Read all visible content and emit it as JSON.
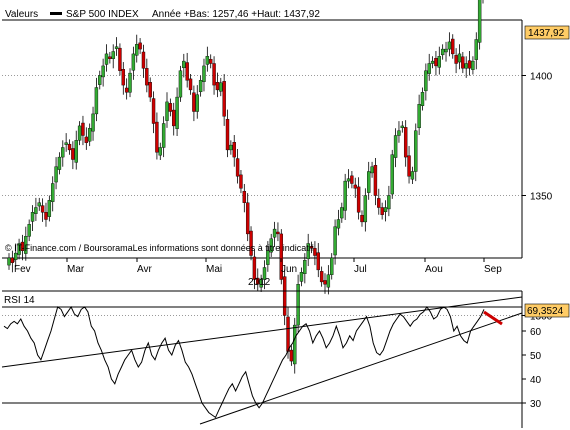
{
  "header": {
    "values_label": "Valeurs",
    "series_name": "S&P 500 INDEX",
    "range_text": "Année +Bas: 1257,46 +Haut: 1437,92"
  },
  "price_axis": {
    "ticks": [
      "1400",
      "1350",
      "1300"
    ],
    "last_value": "1437,92",
    "last_value_color": "#ffcc66"
  },
  "watermark": "© IT-Finance.com / BoursoramaLes informations sont données à titre indicatif",
  "time_axis": {
    "months": [
      "Fev",
      "Mar",
      "Avr",
      "Mai",
      "Jun",
      "Jul",
      "Aou",
      "Sep"
    ],
    "year": "2012"
  },
  "rsi": {
    "label": "RSI 14",
    "ticks": [
      "60",
      "50",
      "40",
      "30"
    ],
    "last_value": "69,3524",
    "last_value_color": "#ffcc66",
    "levels": [
      70,
      30
    ],
    "values": [
      62,
      61,
      63,
      64,
      63,
      65,
      62,
      60,
      57,
      55,
      50,
      48,
      52,
      56,
      60,
      65,
      70,
      69,
      66,
      68,
      70,
      67,
      66,
      69,
      70,
      68,
      62,
      60,
      55,
      52,
      48,
      45,
      40,
      38,
      42,
      45,
      48,
      50,
      52,
      48,
      45,
      47,
      52,
      55,
      50,
      48,
      52,
      55,
      57,
      52,
      50,
      54,
      56,
      52,
      47,
      45,
      42,
      38,
      34,
      30,
      28,
      26,
      25,
      24,
      27,
      30,
      33,
      36,
      38,
      35,
      38,
      41,
      43,
      38,
      33,
      30,
      28,
      30,
      33,
      36,
      39,
      42,
      45,
      48,
      50,
      53,
      55,
      58,
      60,
      62,
      63,
      60,
      55,
      58,
      60,
      57,
      53,
      55,
      58,
      62,
      58,
      53,
      55,
      58,
      56,
      60,
      62,
      64,
      66,
      62,
      55,
      51,
      50,
      52,
      56,
      60,
      63,
      65,
      67,
      66,
      64,
      62,
      64,
      65,
      67,
      68,
      70,
      68,
      65,
      66,
      69,
      70,
      69,
      66,
      60,
      62,
      58,
      56,
      55,
      60,
      62,
      64,
      66,
      69
    ],
    "trendline_color": "#000000",
    "highlight_color": "#cc0000"
  },
  "chart_data": [
    {
      "type": "candlestick",
      "title": "S&P 500 INDEX",
      "year": "2012",
      "x_labels": [
        "Fev",
        "Mar",
        "Avr",
        "Mai",
        "Jun",
        "Jul",
        "Aou",
        "Sep"
      ],
      "ylim": [
        1257.46,
        1437.92
      ],
      "up_color": "#33aa33",
      "down_color": "#cc0000",
      "close": [
        1324,
        1322,
        1326,
        1330,
        1327,
        1333,
        1338,
        1343,
        1345,
        1347,
        1343,
        1340,
        1348,
        1355,
        1362,
        1366,
        1370,
        1372,
        1369,
        1365,
        1373,
        1379,
        1375,
        1372,
        1378,
        1384,
        1395,
        1400,
        1404,
        1409,
        1407,
        1410,
        1412,
        1402,
        1396,
        1393,
        1401,
        1409,
        1413,
        1411,
        1403,
        1396,
        1391,
        1380,
        1368,
        1370,
        1380,
        1389,
        1385,
        1379,
        1391,
        1402,
        1406,
        1398,
        1394,
        1385,
        1392,
        1398,
        1404,
        1408,
        1405,
        1396,
        1394,
        1397,
        1383,
        1369,
        1371,
        1366,
        1358,
        1353,
        1347,
        1334,
        1325,
        1315,
        1313,
        1315,
        1320,
        1327,
        1332,
        1336,
        1334,
        1315,
        1300,
        1285,
        1281,
        1296,
        1313,
        1318,
        1323,
        1330,
        1328,
        1325,
        1319,
        1314,
        1313,
        1317,
        1324,
        1337,
        1340,
        1345,
        1356,
        1357,
        1355,
        1353,
        1343,
        1339,
        1350,
        1360,
        1362,
        1350,
        1345,
        1342,
        1345,
        1350,
        1367,
        1375,
        1377,
        1379,
        1366,
        1358,
        1360,
        1377,
        1388,
        1393,
        1402,
        1405,
        1406,
        1404,
        1408,
        1411,
        1411,
        1414,
        1409,
        1405,
        1409,
        1403,
        1405,
        1403,
        1406,
        1415,
        1432,
        1437.92
      ],
      "rsi_series": {
        "name": "RSI 14",
        "ylim": [
          20,
          80
        ],
        "levels": [
          70,
          30
        ],
        "last": 69.3524
      }
    }
  ]
}
